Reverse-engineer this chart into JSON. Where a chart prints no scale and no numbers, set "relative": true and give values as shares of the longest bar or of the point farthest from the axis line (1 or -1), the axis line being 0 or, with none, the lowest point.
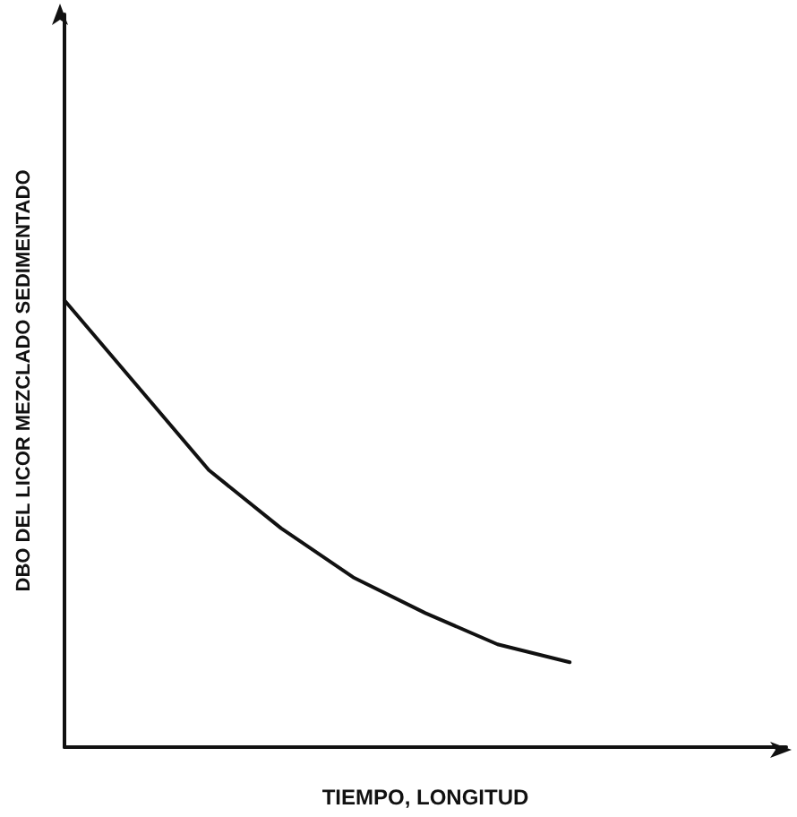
{
  "chart_data": {
    "type": "line",
    "xlabel": "TIEMPO, LONGITUD",
    "ylabel": "DBO DEL LICOR MEZCLADO SEDIMENTADO",
    "relative": true,
    "categories": [
      null,
      null,
      null,
      null,
      null,
      null,
      null,
      null,
      null,
      null,
      null
    ],
    "series": [
      {
        "color": "#111111",
        "values": [
          1.0,
          0.81,
          0.62,
          0.49,
          0.38,
          0.3,
          0.23,
          0.19,
          null,
          null,
          null
        ]
      }
    ],
    "grid": false,
    "marker": "none",
    "line_style": "solid"
  }
}
